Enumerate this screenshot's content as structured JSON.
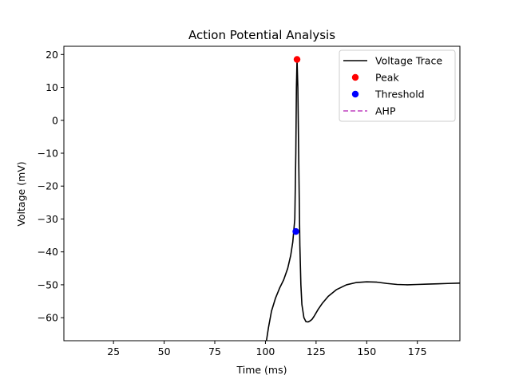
{
  "chart_data": {
    "type": "line",
    "title": "Action Potential Analysis",
    "xlabel": "Time (ms)",
    "ylabel": "Voltage (mV)",
    "xlim": [
      0.5,
      196
    ],
    "ylim": [
      -67,
      22.5
    ],
    "x_ticks": [
      25,
      50,
      75,
      100,
      125,
      150,
      175
    ],
    "x_tick_labels": [
      "25",
      "50",
      "75",
      "100",
      "125",
      "150",
      "175"
    ],
    "y_ticks": [
      20,
      10,
      0,
      -10,
      -20,
      -30,
      -40,
      -50,
      -60
    ],
    "y_tick_labels": [
      "20",
      "10",
      "0",
      "−10",
      "−20",
      "−30",
      "−40",
      "−50",
      "−60"
    ],
    "grid": false,
    "legend_position": "top-right",
    "series": [
      {
        "name": "Voltage Trace",
        "style": "line",
        "color": "#000000",
        "x": [
          100.5,
          101.5,
          103,
          105,
          107,
          109,
          111,
          112.5,
          113.5,
          114.5,
          115,
          115.3,
          115.6,
          116,
          116.5,
          117,
          117.5,
          118,
          119,
          120,
          121,
          122,
          123,
          124,
          126,
          128,
          131,
          135,
          140,
          145,
          150,
          155,
          160,
          165,
          170,
          175,
          180,
          185,
          190,
          196
        ],
        "y": [
          -67,
          -63,
          -58,
          -54,
          -51,
          -48.5,
          -45,
          -41,
          -37,
          -30,
          -10,
          10,
          18.5,
          10,
          -15,
          -38,
          -50,
          -56,
          -60,
          -61.2,
          -61.3,
          -61,
          -60.5,
          -59.6,
          -57.5,
          -55.7,
          -53.5,
          -51.5,
          -50,
          -49.3,
          -49.1,
          -49.2,
          -49.6,
          -49.9,
          -50,
          -49.9,
          -49.8,
          -49.7,
          -49.6,
          -49.5
        ]
      },
      {
        "name": "Peak",
        "style": "marker",
        "color": "#ff0000",
        "x": [
          115.6
        ],
        "y": [
          18.5
        ]
      },
      {
        "name": "Threshold",
        "style": "marker",
        "color": "#0000ff",
        "x": [
          115
        ],
        "y": [
          -33.8
        ]
      },
      {
        "name": "AHP",
        "style": "dashed",
        "color": "#bf40bf",
        "x": [],
        "y": []
      }
    ]
  }
}
